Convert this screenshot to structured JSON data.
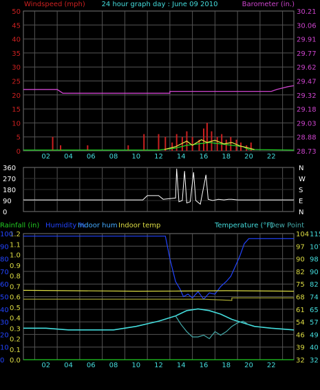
{
  "chart_data": [
    {
      "type": "line",
      "title": "24 hour graph day : June 09 2010",
      "x_ticks": [
        "02",
        "04",
        "06",
        "08",
        "10",
        "12",
        "14",
        "16",
        "18",
        "20",
        "22"
      ],
      "left_axis": {
        "label": "Windspeed (mph)",
        "ticks": [
          "0",
          "5",
          "10",
          "15",
          "20",
          "25",
          "30",
          "35",
          "40",
          "45",
          "50"
        ],
        "range": [
          0,
          50
        ],
        "color": "#cc2020"
      },
      "right_axis": {
        "label": "Barometer (in.)",
        "ticks": [
          "28.73",
          "28.88",
          "29.03",
          "29.18",
          "29.32",
          "29.47",
          "29.62",
          "29.77",
          "29.91",
          "30.06",
          "30.21"
        ],
        "range": [
          28.73,
          30.21
        ],
        "color": "#cc44cc"
      },
      "series": [
        {
          "name": "barometer",
          "axis": "right",
          "color": "#cc44cc",
          "points": [
            [
              0,
              29.38
            ],
            [
              3,
              29.38
            ],
            [
              3.5,
              29.34
            ],
            [
              13,
              29.34
            ],
            [
              13,
              29.36
            ],
            [
              22,
              29.36
            ],
            [
              22.5,
              29.38
            ],
            [
              23.5,
              29.41
            ],
            [
              24,
              29.42
            ]
          ]
        },
        {
          "name": "wind_gust",
          "axis": "left",
          "type": "bar",
          "color": "#cc2020",
          "points": [
            [
              2.6,
              5
            ],
            [
              3.3,
              2
            ],
            [
              5.7,
              2
            ],
            [
              9.3,
              2
            ],
            [
              10.7,
              6
            ],
            [
              12,
              6
            ],
            [
              12.6,
              5
            ],
            [
              13.2,
              3
            ],
            [
              13.6,
              6
            ],
            [
              14.1,
              5
            ],
            [
              14.5,
              7
            ],
            [
              15,
              5
            ],
            [
              15.6,
              4
            ],
            [
              16,
              8
            ],
            [
              16.3,
              10
            ],
            [
              16.7,
              7
            ],
            [
              17.2,
              5
            ],
            [
              17.6,
              6
            ],
            [
              18,
              4
            ],
            [
              18.4,
              5
            ],
            [
              18.9,
              4
            ],
            [
              19.3,
              3
            ],
            [
              19.8,
              2
            ],
            [
              20.2,
              3
            ]
          ]
        },
        {
          "name": "wind_avg",
          "axis": "left",
          "color": "#22cc22",
          "points": [
            [
              0,
              0.3
            ],
            [
              12,
              0.3
            ],
            [
              13.5,
              1
            ],
            [
              14.5,
              2
            ],
            [
              15.5,
              2.5
            ],
            [
              16.5,
              3
            ],
            [
              17.5,
              2.5
            ],
            [
              18.5,
              2
            ],
            [
              19.5,
              1.5
            ],
            [
              20,
              0.5
            ],
            [
              24,
              0.3
            ]
          ]
        },
        {
          "name": "wind_avg_yellow",
          "axis": "left",
          "color": "#dddd44",
          "points": [
            [
              12.5,
              0.5
            ],
            [
              13.5,
              1.5
            ],
            [
              14.5,
              3.5
            ],
            [
              15,
              2
            ],
            [
              15.8,
              4
            ],
            [
              16.3,
              3
            ],
            [
              17,
              3.8
            ],
            [
              17.8,
              2.5
            ],
            [
              18.5,
              3
            ],
            [
              19.2,
              1.8
            ],
            [
              20,
              1
            ],
            [
              20.5,
              0.5
            ]
          ]
        }
      ]
    },
    {
      "type": "line",
      "left_axis": {
        "ticks": [
          "0",
          "90",
          "180",
          "270",
          "360"
        ],
        "range": [
          0,
          360
        ]
      },
      "right_axis": {
        "ticks": [
          "N",
          "E",
          "S",
          "W",
          "N"
        ]
      },
      "series": [
        {
          "name": "wind_direction",
          "color": "#ffffff",
          "points": [
            [
              0,
              95
            ],
            [
              10.6,
              95
            ],
            [
              11,
              130
            ],
            [
              12,
              130
            ],
            [
              12.4,
              100
            ],
            [
              13,
              105
            ],
            [
              13.5,
              110
            ],
            [
              13.6,
              350
            ],
            [
              13.8,
              80
            ],
            [
              14.1,
              90
            ],
            [
              14.3,
              330
            ],
            [
              14.5,
              70
            ],
            [
              14.8,
              80
            ],
            [
              15.1,
              320
            ],
            [
              15.3,
              90
            ],
            [
              15.7,
              60
            ],
            [
              16.2,
              300
            ],
            [
              16.4,
              100
            ],
            [
              16.8,
              90
            ],
            [
              17.3,
              100
            ],
            [
              17.8,
              95
            ],
            [
              18.2,
              100
            ],
            [
              18.5,
              100
            ],
            [
              19,
              95
            ],
            [
              24,
              95
            ]
          ]
        }
      ]
    },
    {
      "type": "line",
      "legend": [
        "Rainfall (in)",
        "Humidity %",
        "Indoor hum",
        "Indoor temp",
        "Temperature (°F)",
        "Dew Point"
      ],
      "legend_colors": [
        "#22cc22",
        "#2244ff",
        "#44aaff",
        "#dddd44",
        "#44dddd",
        "#44aaaa"
      ],
      "x_ticks": [
        "02",
        "04",
        "06",
        "08",
        "10",
        "12",
        "14",
        "16",
        "18",
        "20",
        "22"
      ],
      "left_axis_rain": {
        "label": "Rainfall (in)",
        "ticks": [
          "0.0",
          "0.1",
          "0.2",
          "0.3",
          "0.4",
          "0.5",
          "0.6",
          "0.7",
          "0.8",
          "0.9",
          "1.0",
          "1.1",
          "1.2"
        ],
        "range": [
          0,
          1.2
        ]
      },
      "left_axis_hum": {
        "label": "Humidity %",
        "ticks": [
          "0",
          "10",
          "20",
          "30",
          "40",
          "50",
          "60",
          "70",
          "80",
          "90",
          "100"
        ],
        "range": [
          0,
          100
        ]
      },
      "right_axis_t1": {
        "ticks": [
          "32",
          "39",
          "46",
          "54",
          "61",
          "68",
          "75",
          "82",
          "90",
          "97",
          "104"
        ],
        "range": [
          32,
          104
        ]
      },
      "right_axis_t2": {
        "ticks": [
          "32",
          "40",
          "49",
          "57",
          "65",
          "74",
          "82",
          "90",
          "98",
          "107",
          "115"
        ],
        "range": [
          32,
          115
        ]
      },
      "series": [
        {
          "name": "humidity",
          "color": "#2244ff",
          "points": [
            [
              0,
              98
            ],
            [
              12.6,
              98
            ],
            [
              13,
              80
            ],
            [
              13.5,
              62
            ],
            [
              13.9,
              56
            ],
            [
              14.2,
              50
            ],
            [
              14.6,
              52
            ],
            [
              15,
              49
            ],
            [
              15.5,
              54
            ],
            [
              16,
              48
            ],
            [
              16.5,
              53
            ],
            [
              17,
              52
            ],
            [
              17.5,
              58
            ],
            [
              18,
              62
            ],
            [
              18.4,
              66
            ],
            [
              18.8,
              74
            ],
            [
              19.2,
              82
            ],
            [
              19.6,
              92
            ],
            [
              20,
              96
            ],
            [
              24,
              96
            ]
          ]
        },
        {
          "name": "indoor_temp",
          "color": "#dddd44",
          "points": [
            [
              0,
              71.6
            ],
            [
              10,
              71.1
            ],
            [
              14,
              71.2
            ],
            [
              18,
              71.4
            ],
            [
              24,
              71.1
            ]
          ]
        },
        {
          "name": "indoor_hum",
          "color": "#aaaa33",
          "points": [
            [
              0,
              48
            ],
            [
              16,
              48
            ],
            [
              18.5,
              47
            ],
            [
              18.5,
              49
            ],
            [
              24,
              49
            ]
          ]
        },
        {
          "name": "temperature",
          "color": "#44dddd",
          "points": [
            [
              0,
              50
            ],
            [
              2,
              50
            ],
            [
              4,
              49
            ],
            [
              8,
              49
            ],
            [
              10,
              51
            ],
            [
              12,
              54
            ],
            [
              13.5,
              57
            ],
            [
              14.5,
              60
            ],
            [
              15.5,
              61
            ],
            [
              16.5,
              60
            ],
            [
              17.5,
              58
            ],
            [
              18.5,
              55
            ],
            [
              19.5,
              53
            ],
            [
              20.5,
              51
            ],
            [
              22,
              50
            ],
            [
              24,
              49
            ]
          ]
        },
        {
          "name": "dew_point",
          "color": "#44aaaa",
          "points": [
            [
              13.5,
              57
            ],
            [
              14,
              52
            ],
            [
              14.5,
              48
            ],
            [
              15,
              45
            ],
            [
              15.5,
              45
            ],
            [
              16,
              46
            ],
            [
              16.5,
              44
            ],
            [
              17,
              48
            ],
            [
              17.5,
              46
            ],
            [
              18,
              48
            ],
            [
              18.5,
              51
            ],
            [
              19,
              53
            ],
            [
              19.5,
              54
            ],
            [
              20,
              52
            ]
          ]
        },
        {
          "name": "rainfall",
          "color": "#22cc22",
          "points": [
            [
              0,
              0
            ],
            [
              24,
              0
            ]
          ]
        }
      ]
    }
  ]
}
